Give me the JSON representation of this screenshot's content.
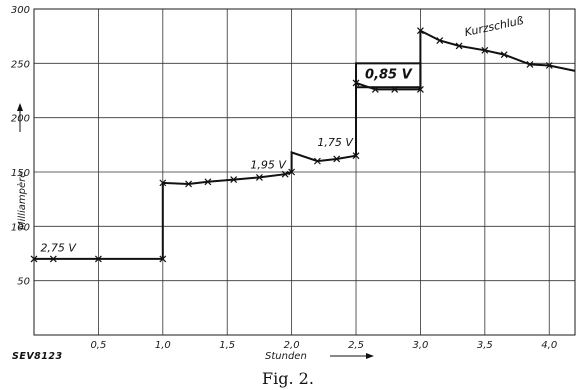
{
  "chart_data": {
    "type": "line",
    "xlabel": "Stunden",
    "ylabel": "Milliampère",
    "xlim": [
      0,
      4.2
    ],
    "ylim": [
      0,
      300
    ],
    "x_ticks": [
      "0,5",
      "1,0",
      "1,5",
      "2,0",
      "2,5",
      "3,0",
      "3,5",
      "4,0"
    ],
    "x_tick_values": [
      0.5,
      1.0,
      1.5,
      2.0,
      2.5,
      3.0,
      3.5,
      4.0
    ],
    "y_ticks": [
      "50",
      "100",
      "150",
      "200",
      "250",
      "300"
    ],
    "y_tick_values": [
      50,
      100,
      150,
      200,
      250,
      300
    ],
    "grid": true,
    "series": [
      {
        "points": [
          [
            0,
            70
          ],
          [
            0.15,
            70
          ],
          [
            0.5,
            70
          ],
          [
            1.0,
            70
          ],
          [
            1.0,
            140
          ],
          [
            1.2,
            139
          ],
          [
            1.35,
            141
          ],
          [
            1.55,
            143
          ],
          [
            1.75,
            145
          ],
          [
            1.95,
            148
          ],
          [
            2.0,
            150
          ],
          [
            2.0,
            168
          ],
          [
            2.2,
            160
          ],
          [
            2.35,
            162
          ],
          [
            2.5,
            165
          ],
          [
            2.5,
            232
          ],
          [
            2.65,
            226
          ],
          [
            2.8,
            226
          ],
          [
            3.0,
            226
          ],
          [
            3.0,
            280
          ],
          [
            3.15,
            271
          ],
          [
            3.3,
            266
          ],
          [
            3.5,
            262
          ],
          [
            3.65,
            258
          ],
          [
            3.85,
            249
          ],
          [
            4.0,
            248
          ],
          [
            4.2,
            243
          ]
        ],
        "markers_x": [
          0,
          0.15,
          0.5,
          1.0,
          1.0,
          1.2,
          1.35,
          1.55,
          1.75,
          1.95,
          2.0,
          2.2,
          2.35,
          2.5,
          2.5,
          2.65,
          2.8,
          3.0,
          3.0,
          3.15,
          3.3,
          3.5,
          3.65,
          3.85,
          4.0
        ]
      }
    ],
    "annotations": [
      {
        "text": "2,75 V",
        "x": 0.05,
        "y": 77
      },
      {
        "text": "1,95 V",
        "x": 1.68,
        "y": 153
      },
      {
        "text": "1,75 V",
        "x": 2.2,
        "y": 174
      },
      {
        "text": "0,85 V",
        "x": 2.57,
        "y": 236
      },
      {
        "text": "Kurzschluß",
        "x": 3.35,
        "y": 275
      }
    ]
  },
  "figure": {
    "code": "SEV8123",
    "caption": "Fig. 2."
  }
}
